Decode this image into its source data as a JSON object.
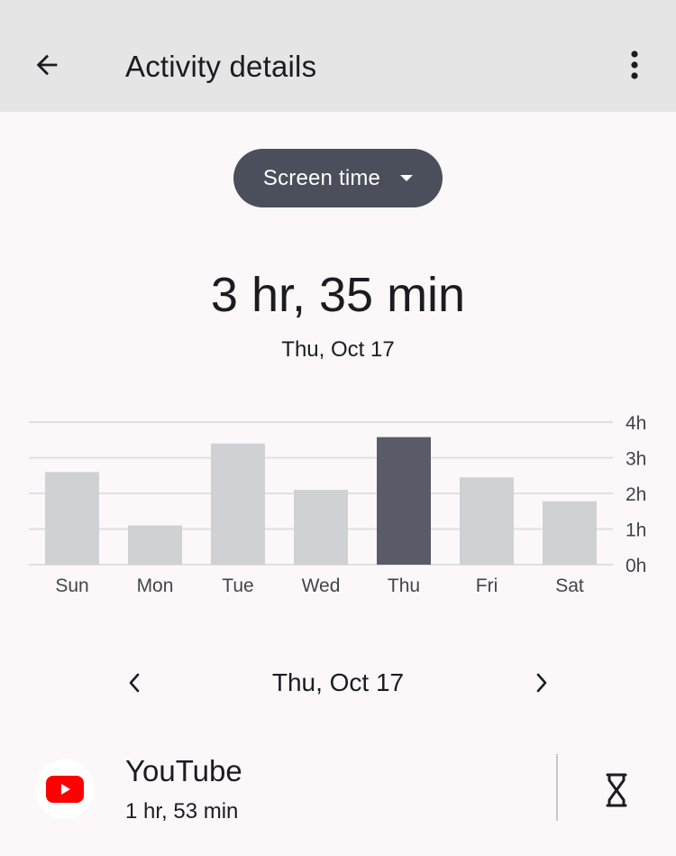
{
  "header": {
    "title": "Activity details",
    "back_icon": "arrow-back-icon",
    "menu_icon": "more-vert-icon"
  },
  "metric_selector": {
    "label": "Screen time",
    "icon": "dropdown-arrow-icon"
  },
  "summary": {
    "total": "3 hr, 35 min",
    "date": "Thu, Oct 17"
  },
  "chart_data": {
    "type": "bar",
    "categories": [
      "Sun",
      "Mon",
      "Tue",
      "Wed",
      "Thu",
      "Fri",
      "Sat"
    ],
    "values": [
      2.6,
      1.1,
      3.4,
      2.1,
      3.58,
      2.45,
      1.78
    ],
    "y_ticks": [
      "0h",
      "1h",
      "2h",
      "3h",
      "4h"
    ],
    "ylim": [
      0,
      4
    ],
    "selected_index": 4,
    "colors": {
      "bar": "#d0d1d4",
      "selected_bar": "#595c68",
      "grid": "#e0dfe2"
    },
    "grid": true,
    "y_axis_position": "right"
  },
  "pager": {
    "date": "Thu, Oct 17",
    "prev_icon": "chevron-left-icon",
    "next_icon": "chevron-right-icon"
  },
  "apps": [
    {
      "name": "YouTube",
      "time": "1 hr, 53 min",
      "icon": "youtube-icon",
      "timer_icon": "hourglass-icon",
      "brand_color": "#ff0000"
    }
  ]
}
